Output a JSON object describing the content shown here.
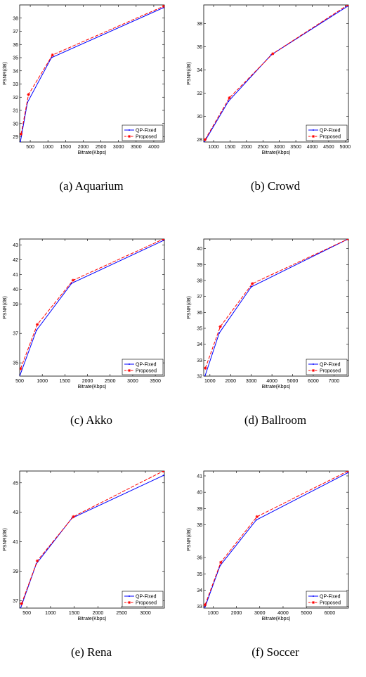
{
  "chart_data": [
    {
      "type": "line",
      "caption": "(a) Aquarium",
      "xlabel": "Bitrate(Kbps)",
      "ylabel": "PSNR(dB)",
      "xlim": [
        200,
        4300
      ],
      "ylim": [
        28.6,
        39
      ],
      "xticks": [
        500,
        1000,
        1500,
        2000,
        2500,
        3000,
        3500,
        4000
      ],
      "yticks": [
        29,
        30,
        31,
        32,
        33,
        34,
        35,
        36,
        37,
        38
      ],
      "legend_position": "bottom-right",
      "series": [
        {
          "name": "QP-Fixed",
          "color": "#0000ff",
          "dash": false,
          "marker": "dot",
          "x": [
            220,
            420,
            1100,
            4280
          ],
          "y": [
            28.6,
            31.6,
            35.0,
            38.8
          ]
        },
        {
          "name": "Proposed",
          "color": "#ff0000",
          "dash": true,
          "marker": "star",
          "x": [
            240,
            450,
            1130,
            4280
          ],
          "y": [
            29.2,
            32.2,
            35.2,
            38.9
          ]
        }
      ]
    },
    {
      "type": "line",
      "caption": "(b) Crowd",
      "xlabel": "Bitrate(Kbps)",
      "ylabel": "PSNR(dB)",
      "xlim": [
        700,
        5100
      ],
      "ylim": [
        27.8,
        39.6
      ],
      "xticks": [
        1000,
        1500,
        2000,
        2500,
        3000,
        3500,
        4000,
        4500,
        5000
      ],
      "yticks": [
        28,
        30,
        32,
        34,
        36,
        38
      ],
      "legend_position": "bottom-right",
      "series": [
        {
          "name": "QP-Fixed",
          "color": "#0000ff",
          "dash": false,
          "marker": "dot",
          "x": [
            720,
            1450,
            2750,
            5080
          ],
          "y": [
            27.8,
            31.3,
            35.3,
            39.5
          ]
        },
        {
          "name": "Proposed",
          "color": "#ff0000",
          "dash": true,
          "marker": "star",
          "x": [
            740,
            1480,
            2800,
            5080
          ],
          "y": [
            28.0,
            31.6,
            35.4,
            39.6
          ]
        }
      ]
    },
    {
      "type": "line",
      "caption": "(c) Akko",
      "xlabel": "Bitrate(Kbps)",
      "ylabel": "PSNR(dB)",
      "xlim": [
        500,
        3700
      ],
      "ylim": [
        34.1,
        43.4
      ],
      "xticks": [
        500,
        1000,
        1500,
        2000,
        2500,
        3000,
        3500
      ],
      "yticks": [
        35,
        37,
        39,
        40,
        41,
        42,
        43
      ],
      "legend_position": "bottom-right",
      "series": [
        {
          "name": "QP-Fixed",
          "color": "#0000ff",
          "dash": false,
          "marker": "dot",
          "x": [
            500,
            870,
            1650,
            3680
          ],
          "y": [
            34.1,
            37.2,
            40.4,
            43.3
          ]
        },
        {
          "name": "Proposed",
          "color": "#ff0000",
          "dash": true,
          "marker": "star",
          "x": [
            520,
            890,
            1680,
            3680
          ],
          "y": [
            34.6,
            37.6,
            40.6,
            43.4
          ]
        }
      ]
    },
    {
      "type": "line",
      "caption": "(d) Ballroom",
      "xlabel": "Bitrate(Kbps)",
      "ylabel": "PSNR(dB)",
      "xlim": [
        700,
        7700
      ],
      "ylim": [
        32,
        40.6
      ],
      "xticks": [
        1000,
        2000,
        3000,
        4000,
        5000,
        6000,
        7000
      ],
      "yticks": [
        32,
        33,
        34,
        35,
        36,
        37,
        38,
        39,
        40
      ],
      "legend_position": "bottom-right",
      "series": [
        {
          "name": "QP-Fixed",
          "color": "#0000ff",
          "dash": false,
          "marker": "dot",
          "x": [
            760,
            1450,
            3000,
            7680
          ],
          "y": [
            32.0,
            34.7,
            37.6,
            40.6
          ]
        },
        {
          "name": "Proposed",
          "color": "#ff0000",
          "dash": true,
          "marker": "star",
          "x": [
            780,
            1500,
            3050,
            7680
          ],
          "y": [
            32.5,
            35.1,
            37.8,
            40.6
          ]
        }
      ]
    },
    {
      "type": "line",
      "caption": "(e)  Rena",
      "xlabel": "Bitrate(Kbps)",
      "ylabel": "PSNR(dB)",
      "xlim": [
        350,
        3400
      ],
      "ylim": [
        36.5,
        45.8
      ],
      "xticks": [
        500,
        1000,
        1500,
        2000,
        2500,
        3000
      ],
      "yticks": [
        37,
        39,
        41,
        43,
        45
      ],
      "legend_position": "bottom-right",
      "series": [
        {
          "name": "QP-Fixed",
          "color": "#0000ff",
          "dash": false,
          "marker": "dot",
          "x": [
            370,
            700,
            1450,
            3380
          ],
          "y": [
            36.5,
            39.5,
            42.6,
            45.5
          ]
        },
        {
          "name": "Proposed",
          "color": "#ff0000",
          "dash": true,
          "marker": "star",
          "x": [
            390,
            720,
            1480,
            3380
          ],
          "y": [
            36.8,
            39.7,
            42.7,
            45.8
          ]
        }
      ]
    },
    {
      "type": "line",
      "caption": "(f) Soccer",
      "xlabel": "Bitrate(Kbps)",
      "ylabel": "PSNR(dB)",
      "xlim": [
        600,
        6800
      ],
      "ylim": [
        32.9,
        41.3
      ],
      "xticks": [
        1000,
        2000,
        3000,
        4000,
        5000,
        6000
      ],
      "yticks": [
        33,
        34,
        35,
        36,
        38,
        39,
        40,
        41
      ],
      "legend_position": "bottom-right",
      "series": [
        {
          "name": "QP-Fixed",
          "color": "#0000ff",
          "dash": false,
          "marker": "dot",
          "x": [
            640,
            1300,
            2850,
            6780
          ],
          "y": [
            32.9,
            35.5,
            38.3,
            41.2
          ]
        },
        {
          "name": "Proposed",
          "color": "#ff0000",
          "dash": true,
          "marker": "star",
          "x": [
            660,
            1330,
            2880,
            6780
          ],
          "y": [
            33.1,
            35.7,
            38.5,
            41.3
          ]
        }
      ]
    }
  ]
}
